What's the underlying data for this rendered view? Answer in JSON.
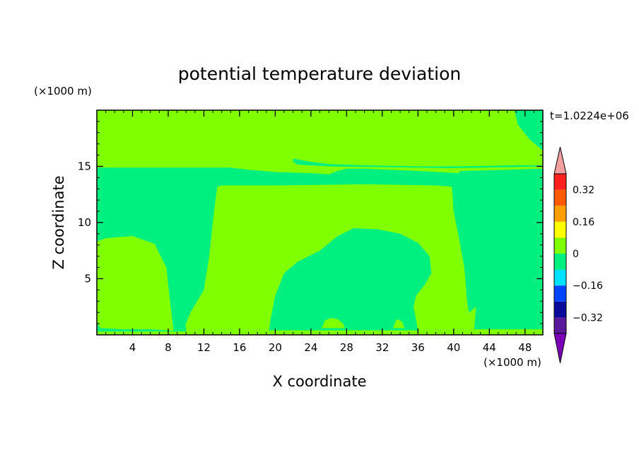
{
  "chart_data": {
    "type": "heatmap",
    "title": "potential temperature deviation",
    "xlabel": "X coordinate",
    "ylabel": "Z coordinate",
    "x_unit": "(×1000 m)",
    "y_unit": "(×1000 m)",
    "time_label": "t=1.0224e+06",
    "xlim": [
      0,
      50
    ],
    "ylim": [
      0,
      20
    ],
    "x_ticks": [
      4,
      8,
      12,
      16,
      20,
      24,
      28,
      32,
      36,
      40,
      44,
      48
    ],
    "y_ticks": [
      5,
      10,
      15
    ],
    "x_tick_labels": [
      "4",
      "8",
      "12",
      "16",
      "20",
      "24",
      "28",
      "32",
      "36",
      "40",
      "44",
      "48"
    ],
    "y_tick_labels": [
      "5",
      "10",
      "15"
    ],
    "colorbar": {
      "levels": [
        -0.4,
        -0.32,
        -0.24,
        -0.16,
        -0.08,
        0,
        0.08,
        0.16,
        0.24,
        0.32,
        0.4
      ],
      "colors": [
        "#5a189a",
        "#0a0a9a",
        "#0044ff",
        "#00e0ff",
        "#00f080",
        "#80ff00",
        "#ffff00",
        "#ffa000",
        "#ff5a00",
        "#ff2020"
      ],
      "under_color": "#7b00b5",
      "over_color": "#f4a0a0",
      "tick_values": [
        -0.32,
        -0.16,
        0,
        0.16,
        0.32
      ],
      "tick_labels": [
        "−0.32",
        "−0.16",
        "0",
        "0.16",
        "0.32"
      ]
    },
    "field_colors": {
      "positive": "#80ff00",
      "negative": "#00f080"
    },
    "regions": [
      {
        "sign": "positive",
        "points": [
          [
            0,
            13.2
          ],
          [
            16,
            13.2
          ],
          [
            20,
            13.3
          ],
          [
            30,
            13.4
          ],
          [
            38,
            13.2
          ],
          [
            40,
            13.2
          ],
          [
            40,
            11
          ],
          [
            40.7,
            9
          ],
          [
            41.2,
            6
          ],
          [
            41.5,
            3.2
          ],
          [
            42.5,
            0.6
          ],
          [
            50,
            0.6
          ],
          [
            50,
            0
          ],
          [
            0,
            0
          ]
        ]
      },
      {
        "sign": "negative",
        "points": [
          [
            0,
            14.9
          ],
          [
            15,
            14.9
          ],
          [
            17,
            14.7
          ],
          [
            20,
            14.5
          ],
          [
            24,
            14.4
          ],
          [
            26,
            14.3
          ],
          [
            27,
            14.6
          ],
          [
            28,
            14.8
          ],
          [
            30,
            14.8
          ],
          [
            36,
            14.6
          ],
          [
            40.5,
            14.4
          ],
          [
            40.8,
            14.6
          ],
          [
            46,
            14.7
          ],
          [
            50,
            14.8
          ],
          [
            50,
            0.5
          ],
          [
            42,
            0.5
          ],
          [
            41.5,
            3
          ],
          [
            41.2,
            6
          ],
          [
            40.5,
            9
          ],
          [
            40,
            11
          ],
          [
            39.8,
            13.2
          ],
          [
            38,
            13.3
          ],
          [
            30,
            13.4
          ],
          [
            20,
            13.3
          ],
          [
            14,
            13.3
          ],
          [
            13.5,
            13.2
          ],
          [
            13.3,
            12
          ],
          [
            13,
            10
          ],
          [
            12.6,
            7
          ],
          [
            12,
            4
          ],
          [
            10.5,
            2
          ],
          [
            9.7,
            0.4
          ],
          [
            8.6,
            0.4
          ],
          [
            8.5,
            1
          ],
          [
            8.2,
            3
          ],
          [
            7.8,
            6
          ],
          [
            6.5,
            8
          ],
          [
            4,
            8.8
          ],
          [
            1,
            8.6
          ],
          [
            0,
            8.3
          ]
        ]
      },
      {
        "sign": "positive",
        "points": [
          [
            0,
            0.7
          ],
          [
            0,
            8.3
          ],
          [
            1,
            8.6
          ],
          [
            4,
            8.8
          ],
          [
            6.5,
            8.1
          ],
          [
            7.7,
            6
          ],
          [
            8.1,
            3
          ],
          [
            8.3,
            0.7
          ]
        ]
      },
      {
        "sign": "negative",
        "points": [
          [
            19.3,
            0.4
          ],
          [
            19.5,
            1.5
          ],
          [
            20,
            3.5
          ],
          [
            21,
            5.5
          ],
          [
            22.5,
            6.5
          ],
          [
            25,
            7.5
          ],
          [
            27,
            8.8
          ],
          [
            28.8,
            9.5
          ],
          [
            31.5,
            9.4
          ],
          [
            34,
            9
          ],
          [
            36,
            8.2
          ],
          [
            37.3,
            7
          ],
          [
            37.5,
            5.5
          ],
          [
            36.8,
            4.5
          ],
          [
            35.8,
            3.5
          ],
          [
            35.5,
            2.5
          ],
          [
            35.8,
            1.3
          ],
          [
            36,
            0.4
          ]
        ]
      },
      {
        "sign": "positive",
        "points": [
          [
            0,
            15.7
          ],
          [
            0,
            20
          ],
          [
            21.3,
            20
          ],
          [
            21.3,
            18.6
          ],
          [
            21.5,
            16.4
          ],
          [
            23,
            16.1
          ],
          [
            25,
            15.8
          ],
          [
            27,
            15.6
          ],
          [
            33,
            15.4
          ],
          [
            40,
            15.3
          ],
          [
            44,
            15.2
          ],
          [
            46,
            15.1
          ],
          [
            48,
            15.2
          ],
          [
            50,
            15.2
          ],
          [
            50,
            14.8
          ],
          [
            46,
            14.7
          ],
          [
            40.8,
            14.6
          ],
          [
            40.5,
            14.4
          ],
          [
            36,
            14.6
          ],
          [
            30,
            14.8
          ],
          [
            28,
            14.8
          ],
          [
            27,
            14.6
          ],
          [
            26,
            14.3
          ],
          [
            24,
            14.4
          ],
          [
            20,
            14.5
          ],
          [
            17,
            14.7
          ],
          [
            15,
            14.9
          ],
          [
            0,
            14.9
          ]
        ]
      },
      {
        "sign": "negative",
        "points": [
          [
            22,
            15.7
          ],
          [
            24,
            15.4
          ],
          [
            26,
            15.2
          ],
          [
            30,
            15.1
          ],
          [
            36,
            15.0
          ],
          [
            40,
            15.0
          ],
          [
            44,
            15.05
          ],
          [
            47,
            15.1
          ],
          [
            50,
            15.1
          ],
          [
            50,
            15.0
          ],
          [
            44,
            14.9
          ],
          [
            40,
            14.85
          ],
          [
            30,
            14.95
          ],
          [
            26,
            15.0
          ],
          [
            22.5,
            15.15
          ],
          [
            22,
            15.4
          ]
        ]
      },
      {
        "sign": "negative",
        "points": [
          [
            46.8,
            20
          ],
          [
            47.2,
            18.7
          ],
          [
            48.5,
            17.4
          ],
          [
            50,
            16.4
          ],
          [
            50,
            20
          ]
        ]
      },
      {
        "sign": "negative",
        "points": [
          [
            50,
            8.1
          ],
          [
            48.5,
            7.5
          ],
          [
            48,
            6
          ],
          [
            48.2,
            4
          ],
          [
            49,
            3.5
          ],
          [
            50,
            3.4
          ]
        ]
      },
      {
        "sign": "negative",
        "points": [
          [
            0,
            0.3
          ],
          [
            10,
            0.3
          ],
          [
            10,
            0.8
          ],
          [
            9.4,
            0.9
          ],
          [
            9.2,
            0.35
          ],
          [
            8.9,
            0.9
          ],
          [
            8.6,
            0.35
          ],
          [
            6,
            0.5
          ],
          [
            3,
            0.5
          ],
          [
            0.4,
            0.6
          ],
          [
            0,
            1.1
          ]
        ]
      },
      {
        "sign": "positive",
        "points": [
          [
            25.2,
            0.6
          ],
          [
            25.6,
            1.3
          ],
          [
            26.3,
            1.5
          ],
          [
            27,
            1.4
          ],
          [
            27.6,
            1.0
          ],
          [
            27.8,
            0.6
          ]
        ]
      },
      {
        "sign": "positive",
        "points": [
          [
            33.2,
            0.6
          ],
          [
            33.6,
            1.4
          ],
          [
            34.2,
            1.2
          ],
          [
            34.5,
            0.6
          ]
        ]
      },
      {
        "sign": "positive",
        "points": [
          [
            40.8,
            0.5
          ],
          [
            41.5,
            1.8
          ],
          [
            42.5,
            2.5
          ],
          [
            42.3,
            0.5
          ]
        ]
      }
    ]
  }
}
